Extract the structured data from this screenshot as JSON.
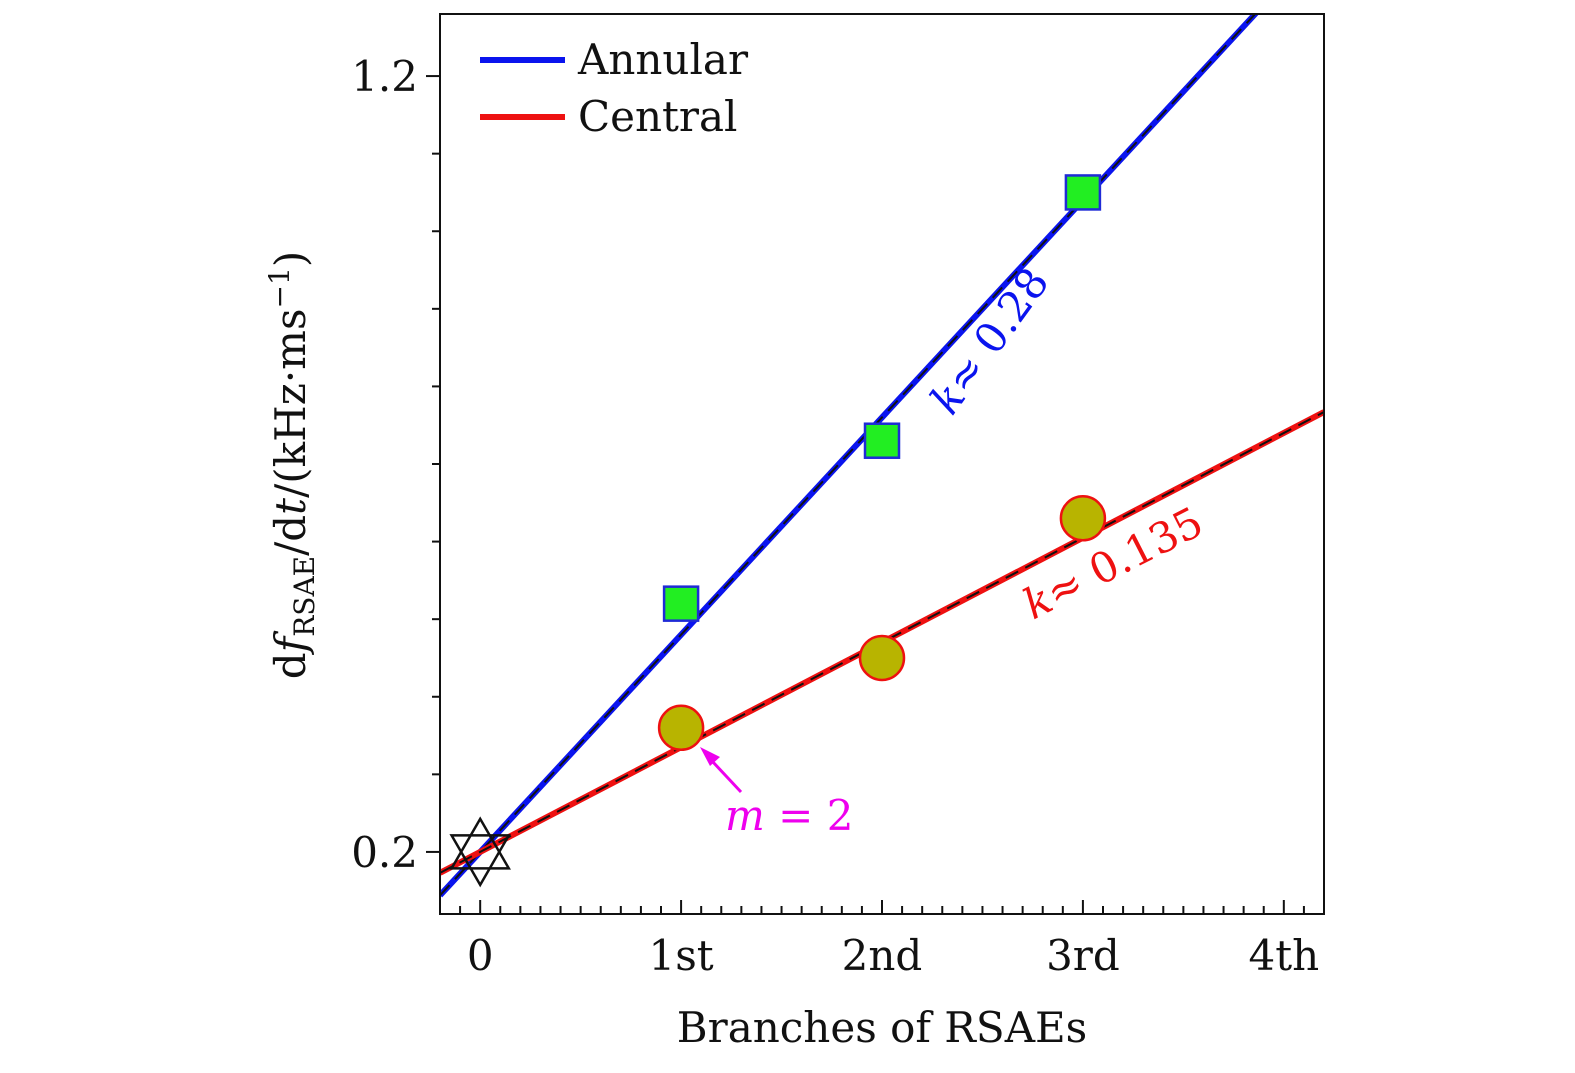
{
  "chart_data": {
    "type": "scatter",
    "title": "",
    "xlabel": "Branches of RSAEs",
    "ylabel": {
      "prefix": "d",
      "f": "f",
      "sub": "RSAE",
      "mid": "/d",
      "t": "t",
      "unit": "/(kHz·ms",
      "sup": "−1",
      "close": ")"
    },
    "xlim": [
      -0.2,
      4.2
    ],
    "ylim": [
      0.12,
      1.28
    ],
    "x_ticks": [
      {
        "value": 0,
        "label": "0"
      },
      {
        "value": 1,
        "label": "1st"
      },
      {
        "value": 2,
        "label": "2nd"
      },
      {
        "value": 3,
        "label": "3rd"
      },
      {
        "value": 4,
        "label": "4th"
      }
    ],
    "y_ticks": [
      {
        "value": 0.2,
        "label": "0.2"
      },
      {
        "value": 1.2,
        "label": "1.2"
      }
    ],
    "legend": {
      "placement": "top-left",
      "entries": [
        {
          "name": "Annular",
          "color": "#0a14ee"
        },
        {
          "name": "Central",
          "color": "#ee1111"
        }
      ]
    },
    "fits": [
      {
        "name": "Annular",
        "slope": 0.28,
        "intercept": 0.2,
        "color": "#0a14ee",
        "label_k": "k",
        "label_value": "≈ 0.28"
      },
      {
        "name": "Central",
        "slope": 0.135,
        "intercept": 0.2,
        "color": "#ee1111",
        "label_k": "k",
        "label_value": "≈ 0.135"
      }
    ],
    "series": [
      {
        "name": "Annular",
        "marker": "square",
        "fill": "#22ee22",
        "edge": "#1f2bd6",
        "x": [
          1,
          2,
          3
        ],
        "y": [
          0.52,
          0.73,
          1.05
        ]
      },
      {
        "name": "Central",
        "marker": "circle",
        "fill": "#b8b400",
        "edge": "#ee1111",
        "x": [
          1,
          2,
          3
        ],
        "y": [
          0.36,
          0.45,
          0.63
        ]
      }
    ],
    "origin_marker": {
      "x": 0,
      "y": 0.2,
      "shape": "hexagram"
    },
    "annotation": {
      "text_m": "m",
      "text_rest": " = 2",
      "color": "#ee00ee",
      "points_to": {
        "x": 1,
        "y": 0.36
      }
    }
  }
}
